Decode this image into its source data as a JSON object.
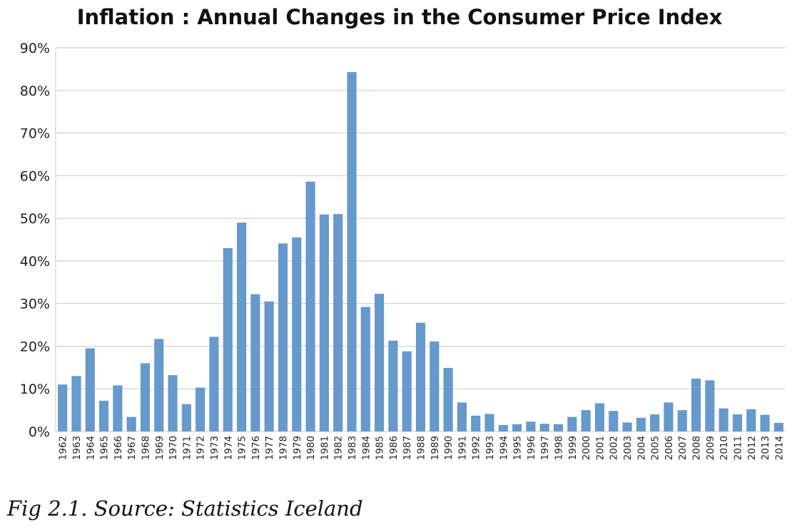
{
  "chart_data": {
    "type": "bar",
    "title": "Inflation : Annual Changes in the Consumer Price Index",
    "xlabel": "",
    "ylabel": "",
    "ylim": [
      0,
      90
    ],
    "y_ticks": [
      "0%",
      "10%",
      "20%",
      "30%",
      "40%",
      "50%",
      "60%",
      "70%",
      "80%",
      "90%"
    ],
    "grid": true,
    "legend": "none",
    "bar_color": "#6699cc",
    "categories": [
      "1962",
      "1963",
      "1964",
      "1965",
      "1966",
      "1967",
      "1968",
      "1969",
      "1970",
      "1971",
      "1972",
      "1973",
      "1974",
      "1975",
      "1976",
      "1977",
      "1978",
      "1979",
      "1980",
      "1981",
      "1982",
      "1983",
      "1984",
      "1985",
      "1986",
      "1987",
      "1988",
      "1989",
      "1990",
      "1991",
      "1992",
      "1993",
      "1994",
      "1995",
      "1996",
      "1997",
      "1998",
      "1999",
      "2000",
      "2001",
      "2002",
      "2003",
      "2004",
      "2005",
      "2006",
      "2007",
      "2008",
      "2009",
      "2010",
      "2011",
      "2012",
      "2013",
      "2014"
    ],
    "values": [
      11.0,
      13.0,
      19.5,
      7.2,
      10.8,
      3.4,
      16.0,
      21.7,
      13.2,
      6.4,
      10.3,
      22.2,
      43.0,
      49.0,
      32.2,
      30.5,
      44.1,
      45.5,
      58.6,
      50.9,
      51.0,
      84.3,
      29.2,
      32.3,
      21.3,
      18.8,
      25.5,
      21.1,
      14.9,
      6.8,
      3.7,
      4.1,
      1.5,
      1.7,
      2.3,
      1.8,
      1.7,
      3.4,
      5.0,
      6.6,
      4.8,
      2.1,
      3.2,
      4.0,
      6.8,
      5.0,
      12.4,
      12.0,
      5.4,
      4.0,
      5.2,
      3.9,
      2.0
    ]
  },
  "caption": "Fig 2.1. Source: Statistics Iceland"
}
